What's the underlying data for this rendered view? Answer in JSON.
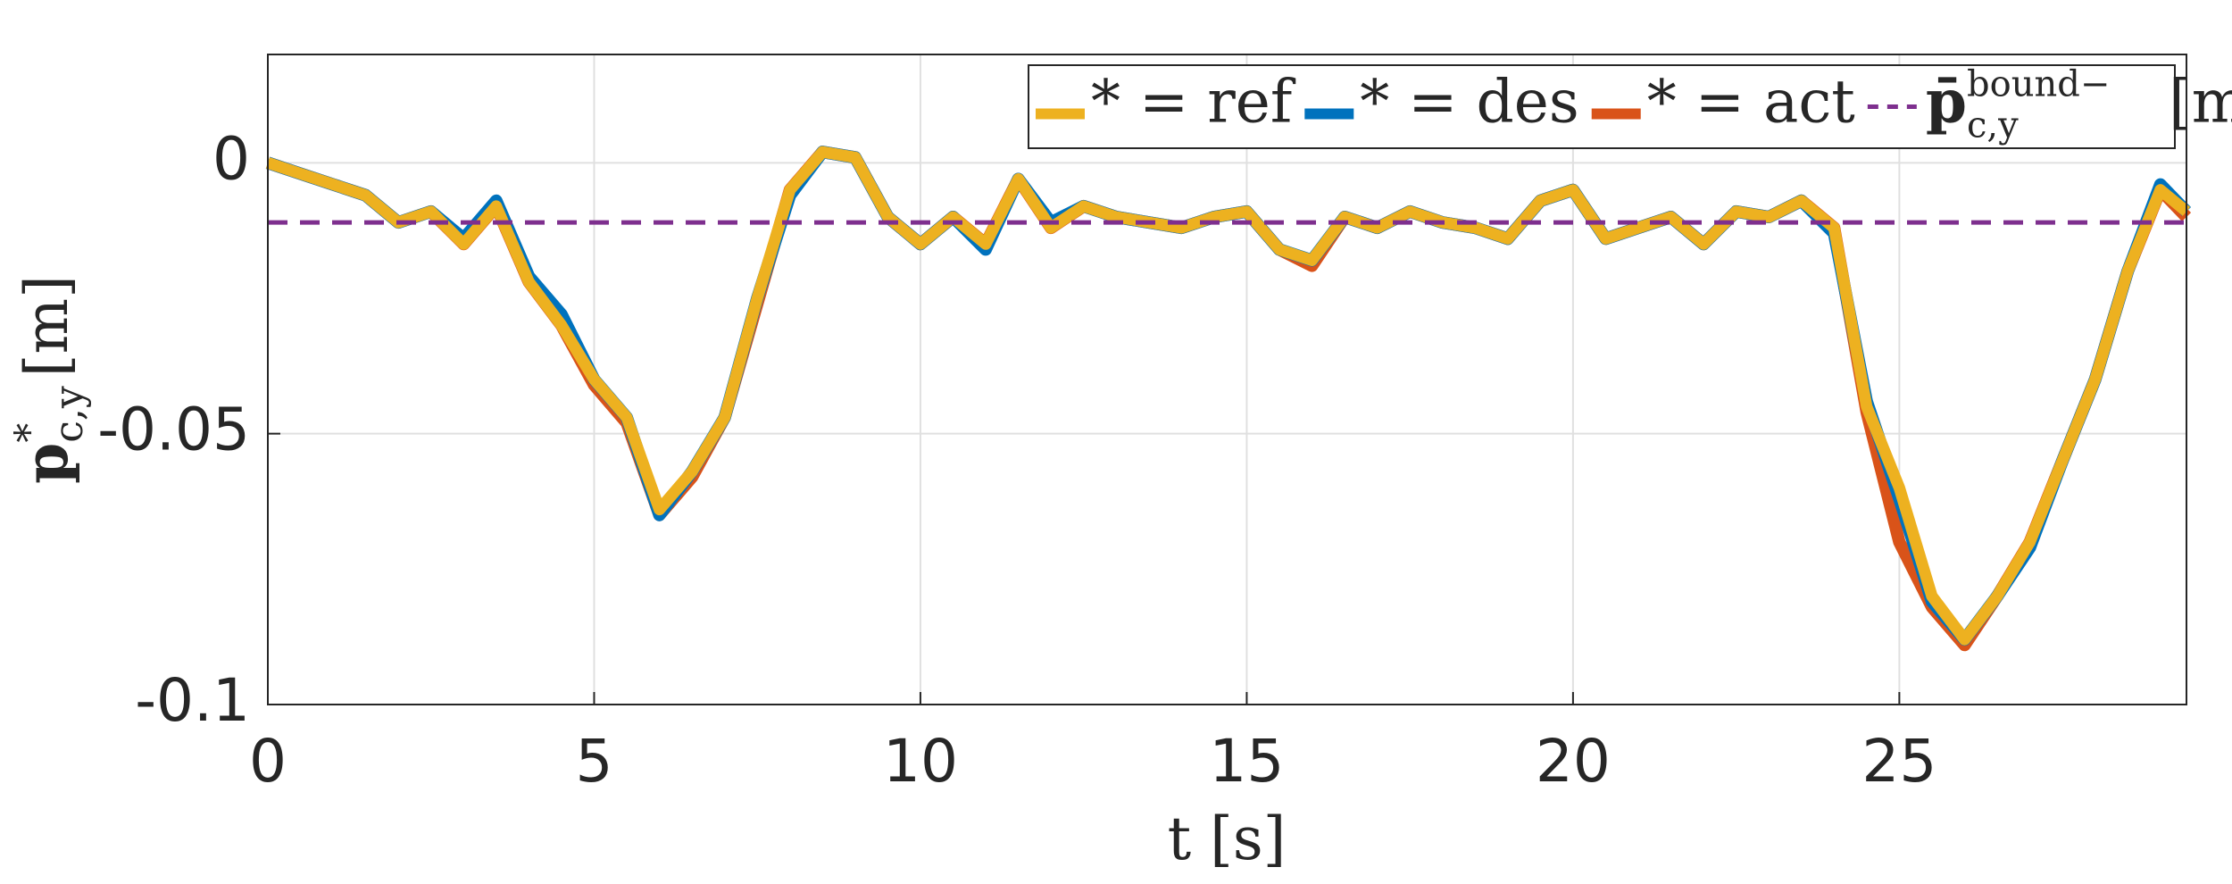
{
  "chart_data": {
    "type": "line",
    "xlabel": "t [s]",
    "ylabel": {
      "base": "p",
      "sup": "*",
      "sub": "c,y",
      "unit": "[m]"
    },
    "x": [
      0,
      0.5,
      1,
      1.5,
      2,
      2.5,
      3,
      3.5,
      4,
      4.5,
      5,
      5.5,
      6,
      6.5,
      7,
      7.5,
      8,
      8.5,
      9,
      9.5,
      10,
      10.5,
      11,
      11.5,
      12,
      12.5,
      13,
      13.5,
      14,
      14.5,
      15,
      15.5,
      16,
      16.5,
      17,
      17.5,
      18,
      18.5,
      19,
      19.5,
      20,
      20.5,
      21,
      21.5,
      22,
      22.5,
      23,
      23.5,
      24,
      24.5,
      25,
      25.5,
      26,
      26.5,
      27,
      27.5,
      28,
      28.5,
      29,
      29.4
    ],
    "series": [
      {
        "name": "* = ref",
        "color": "#edb120",
        "values": [
          0,
          -0.002,
          -0.004,
          -0.006,
          -0.011,
          -0.009,
          -0.015,
          -0.008,
          -0.022,
          -0.03,
          -0.04,
          -0.047,
          -0.064,
          -0.057,
          -0.047,
          -0.025,
          -0.005,
          0.002,
          0.001,
          -0.01,
          -0.015,
          -0.01,
          -0.015,
          -0.003,
          -0.012,
          -0.008,
          -0.01,
          -0.011,
          -0.012,
          -0.01,
          -0.009,
          -0.016,
          -0.018,
          -0.01,
          -0.012,
          -0.009,
          -0.011,
          -0.012,
          -0.014,
          -0.007,
          -0.005,
          -0.014,
          -0.012,
          -0.01,
          -0.015,
          -0.009,
          -0.01,
          -0.007,
          -0.012,
          -0.045,
          -0.06,
          -0.08,
          -0.088,
          -0.08,
          -0.07,
          -0.055,
          -0.04,
          -0.02,
          -0.005,
          -0.009
        ]
      },
      {
        "name": "* = des",
        "color": "#0072bd",
        "values": [
          0,
          -0.002,
          -0.004,
          -0.006,
          -0.011,
          -0.009,
          -0.014,
          -0.007,
          -0.021,
          -0.028,
          -0.04,
          -0.047,
          -0.065,
          -0.057,
          -0.047,
          -0.025,
          -0.006,
          0.002,
          0.001,
          -0.01,
          -0.015,
          -0.01,
          -0.016,
          -0.003,
          -0.011,
          -0.008,
          -0.01,
          -0.011,
          -0.012,
          -0.01,
          -0.009,
          -0.016,
          -0.018,
          -0.01,
          -0.012,
          -0.009,
          -0.011,
          -0.012,
          -0.014,
          -0.007,
          -0.005,
          -0.014,
          -0.012,
          -0.01,
          -0.015,
          -0.009,
          -0.01,
          -0.007,
          -0.013,
          -0.044,
          -0.062,
          -0.081,
          -0.088,
          -0.08,
          -0.071,
          -0.055,
          -0.04,
          -0.02,
          -0.004,
          -0.009
        ]
      },
      {
        "name": "* = act",
        "color": "#d95319",
        "values": [
          0,
          -0.002,
          -0.004,
          -0.006,
          -0.011,
          -0.009,
          -0.015,
          -0.008,
          -0.022,
          -0.03,
          -0.041,
          -0.048,
          -0.065,
          -0.058,
          -0.047,
          -0.026,
          -0.005,
          0.002,
          0.001,
          -0.01,
          -0.015,
          -0.01,
          -0.015,
          -0.003,
          -0.012,
          -0.008,
          -0.01,
          -0.011,
          -0.012,
          -0.01,
          -0.009,
          -0.016,
          -0.019,
          -0.01,
          -0.012,
          -0.009,
          -0.011,
          -0.012,
          -0.014,
          -0.007,
          -0.005,
          -0.014,
          -0.012,
          -0.01,
          -0.015,
          -0.009,
          -0.01,
          -0.007,
          -0.012,
          -0.046,
          -0.07,
          -0.082,
          -0.089,
          -0.08,
          -0.07,
          -0.055,
          -0.04,
          -0.02,
          -0.005,
          -0.01
        ]
      }
    ],
    "bound": {
      "name": {
        "base": "p̄",
        "sup": "bound−",
        "sub": "c,y",
        "unit": "[m]"
      },
      "color": "#7e2f8e",
      "value": -0.011
    },
    "xlim": [
      0,
      29.4
    ],
    "ylim": [
      -0.1,
      0.02
    ],
    "xticks": [
      0,
      5,
      10,
      15,
      20,
      25
    ],
    "yticks": [
      -0.1,
      -0.05,
      0
    ],
    "grid": true,
    "legend": "top-right"
  }
}
